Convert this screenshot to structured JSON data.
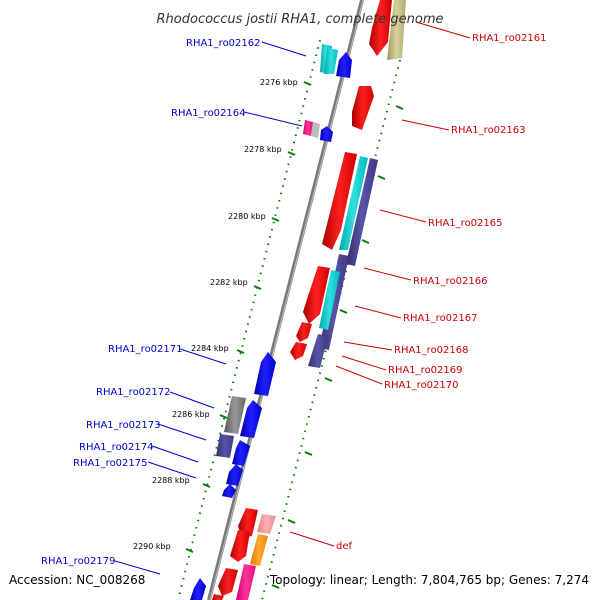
{
  "title": "Rhodococcus jostii RHA1, complete genome",
  "footer": {
    "accession": "Accession: NC_008268",
    "summary": "Topology: linear; Length: 7,804,765 bp; Genes: 7,274"
  },
  "kbp_labels": [
    "2276 kbp",
    "2278 kbp",
    "2280 kbp",
    "2282 kbp",
    "2284 kbp",
    "2286 kbp",
    "2288 kbp",
    "2290 kbp"
  ],
  "genes_right": [
    "RHA1_ro02161",
    "RHA1_ro02163",
    "RHA1_ro02165",
    "RHA1_ro02166",
    "RHA1_ro02167",
    "RHA1_ro02168",
    "RHA1_ro02169",
    "RHA1_ro02170",
    "def"
  ],
  "genes_left": [
    "RHA1_ro02162",
    "RHA1_ro02164",
    "RHA1_ro02171",
    "RHA1_ro02172",
    "RHA1_ro02173",
    "RHA1_ro02174",
    "RHA1_ro02175",
    "RHA1_ro02179"
  ],
  "colors": {
    "forward_gene": "#ff0000",
    "reverse_gene": "#0000ff",
    "forward_label": "#cc0000",
    "reverse_label": "#0000cc",
    "backbone": "#808080",
    "gc_track": "#008000"
  }
}
